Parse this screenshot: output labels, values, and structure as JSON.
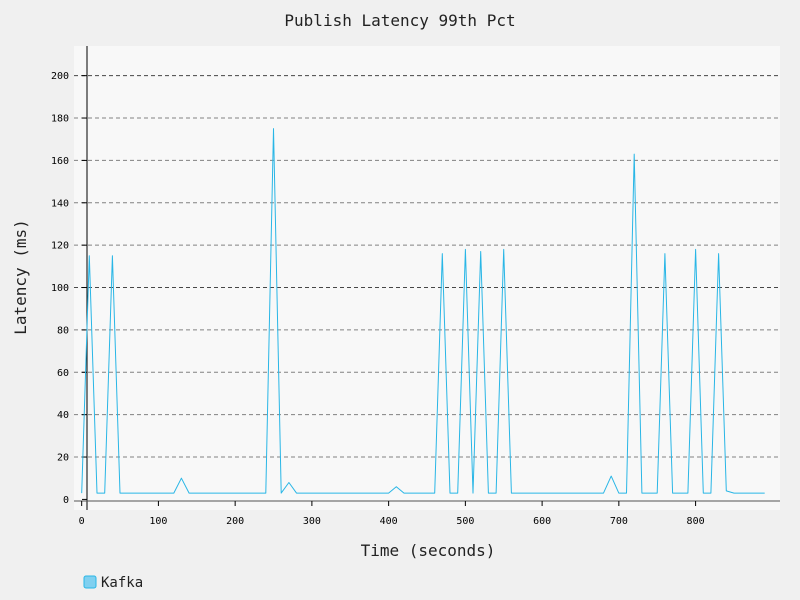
{
  "chart_data": {
    "type": "line",
    "title": "Publish Latency 99th Pct",
    "xlabel": "Time (seconds)",
    "ylabel": "Latency (ms)",
    "xlim": [
      -10,
      910
    ],
    "ylim": [
      -5,
      214
    ],
    "x_ticks": [
      0,
      100,
      200,
      300,
      400,
      500,
      600,
      700,
      800
    ],
    "y_ticks": [
      0,
      20,
      40,
      60,
      80,
      100,
      120,
      140,
      160,
      180,
      200
    ],
    "grid": true,
    "legend_position": "bottom-left",
    "series": [
      {
        "name": "Kafka",
        "color": "#29b6e6",
        "fill": "#7fd0f0",
        "x": [
          0,
          10,
          20,
          30,
          40,
          50,
          60,
          70,
          80,
          90,
          100,
          110,
          120,
          130,
          140,
          150,
          160,
          170,
          180,
          190,
          200,
          210,
          220,
          230,
          240,
          250,
          260,
          270,
          280,
          290,
          300,
          310,
          320,
          330,
          340,
          350,
          360,
          370,
          380,
          390,
          400,
          410,
          420,
          430,
          440,
          450,
          460,
          470,
          480,
          490,
          500,
          510,
          520,
          530,
          540,
          550,
          560,
          570,
          580,
          590,
          600,
          610,
          620,
          630,
          640,
          650,
          660,
          670,
          680,
          690,
          700,
          710,
          720,
          730,
          740,
          750,
          760,
          770,
          780,
          790,
          800,
          810,
          820,
          830,
          840,
          850,
          860,
          870,
          880,
          890
        ],
        "values": [
          3,
          115,
          3,
          3,
          115,
          3,
          3,
          3,
          3,
          3,
          3,
          3,
          3,
          10,
          3,
          3,
          3,
          3,
          3,
          3,
          3,
          3,
          3,
          3,
          3,
          175,
          3,
          8,
          3,
          3,
          3,
          3,
          3,
          3,
          3,
          3,
          3,
          3,
          3,
          3,
          3,
          6,
          3,
          3,
          3,
          3,
          3,
          116,
          3,
          3,
          118,
          3,
          117,
          3,
          3,
          118,
          3,
          3,
          3,
          3,
          3,
          3,
          3,
          3,
          3,
          3,
          3,
          3,
          3,
          11,
          3,
          3,
          163,
          3,
          3,
          3,
          116,
          3,
          3,
          3,
          118,
          3,
          3,
          116,
          4,
          3,
          3,
          3,
          3,
          3
        ]
      }
    ]
  }
}
